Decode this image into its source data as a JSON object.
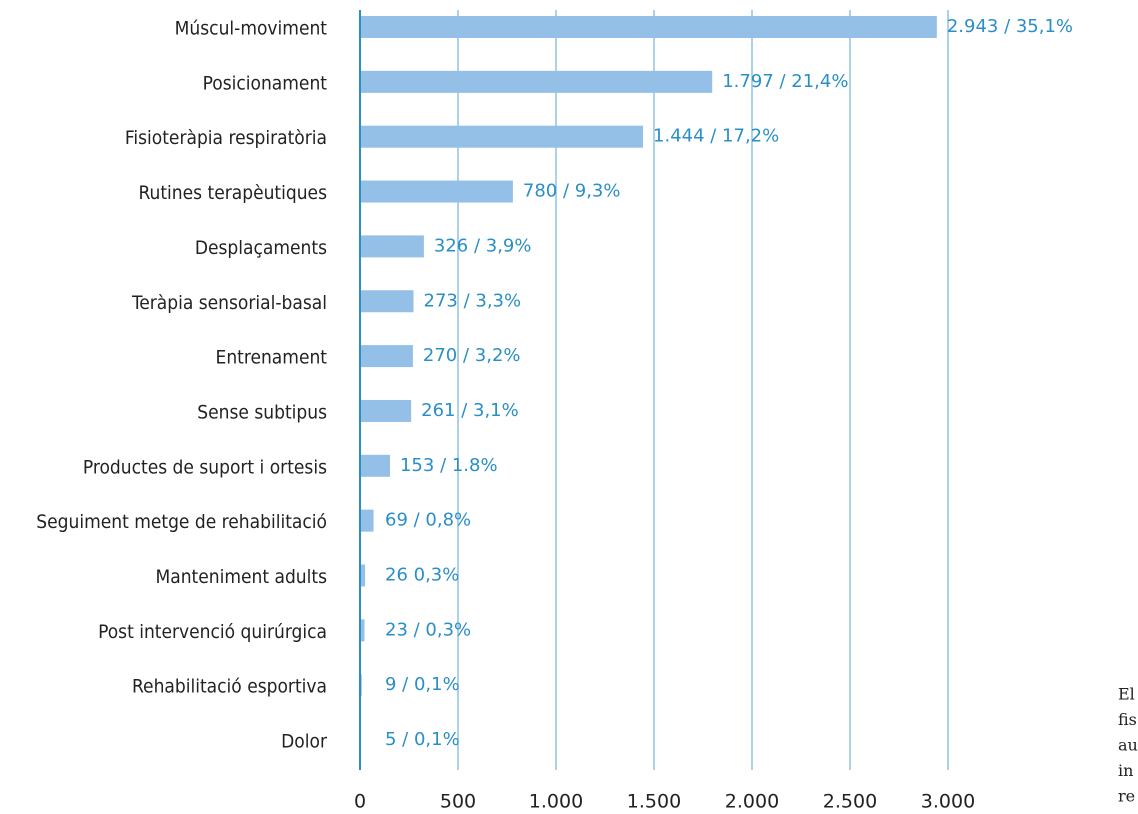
{
  "chart_data": {
    "type": "bar",
    "orientation": "horizontal",
    "categories": [
      "Múscul-moviment",
      "Posicionament",
      "Fisioteràpia respiratòria",
      "Rutines terapèutiques",
      "Desplaçaments",
      "Teràpia sensorial-basal",
      "Entrenament",
      "Sense subtipus",
      "Productes de suport i ortesis",
      "Seguiment metge de rehabilitació",
      "Manteniment adults",
      "Post intervenció quirúrgica",
      "Rehabilitació esportiva",
      "Dolor"
    ],
    "values": [
      2943,
      1797,
      1444,
      780,
      326,
      273,
      270,
      261,
      153,
      69,
      26,
      23,
      9,
      5
    ],
    "value_labels": [
      "2.943 / 35,1%",
      "1.797 / 21,4%",
      "1.444 / 17,2%",
      "780 / 9,3%",
      "326 / 3,9%",
      "273 / 3,3%",
      "270 / 3,2%",
      "261 / 3,1%",
      "153 / 1.8%",
      "69 / 0,8%",
      "26 0,3%",
      "23 / 0,3%",
      "9 / 0,1%",
      "5 / 0,1%"
    ],
    "color": "#94bfe6",
    "xlim": [
      0,
      3000
    ],
    "xticks": [
      0,
      500,
      {
        "value": 1000,
        "label": "1.000"
      },
      {
        "value": 1500,
        "label": "1.500"
      },
      {
        "value": 2000,
        "label": "2.000"
      },
      {
        "value": 2500,
        "label": "2.500"
      },
      {
        "value": 3000,
        "label": "3.000"
      }
    ],
    "grid": true
  },
  "side_text": [
    "El",
    "fis",
    "au",
    "in",
    "re"
  ]
}
